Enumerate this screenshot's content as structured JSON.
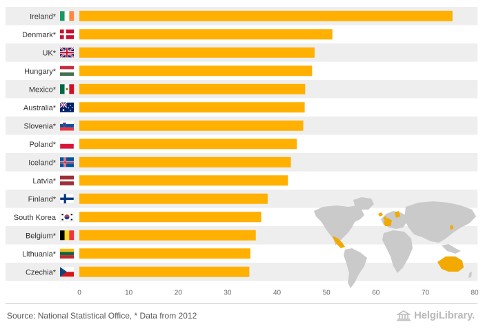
{
  "chart_data": {
    "type": "bar",
    "orientation": "horizontal",
    "categories": [
      "Ireland*",
      "Denmark*",
      "UK*",
      "Hungary*",
      "Mexico*",
      "Australia*",
      "Slovenia*",
      "Poland*",
      "Iceland*",
      "Latvia*",
      "Finland*",
      "South Korea",
      "Belgium*",
      "Lithuania*",
      "Czechia*"
    ],
    "flags": [
      "ie",
      "dk",
      "gb",
      "hu",
      "mx",
      "au",
      "si",
      "pl",
      "is",
      "lv",
      "fi",
      "kr",
      "be",
      "lt",
      "cz"
    ],
    "values": [
      75.5,
      51.2,
      47.6,
      47.1,
      45.7,
      45.6,
      45.3,
      44.0,
      42.8,
      42.2,
      38.1,
      36.8,
      35.7,
      34.6,
      34.4
    ],
    "xlim": [
      0,
      80
    ],
    "xticks": [
      0,
      10,
      20,
      30,
      40,
      50,
      60,
      70,
      80
    ],
    "title": "",
    "xlabel": "",
    "ylabel": "",
    "bar_color": "#FFB000",
    "stripe_color": "#EEEEEE",
    "map_color": "#CACACA",
    "map_highlight_color": "#F2A900"
  },
  "footer": {
    "source": "Source: National Statistical Office, * Data from 2012",
    "brand": "HelgiLibrary."
  }
}
